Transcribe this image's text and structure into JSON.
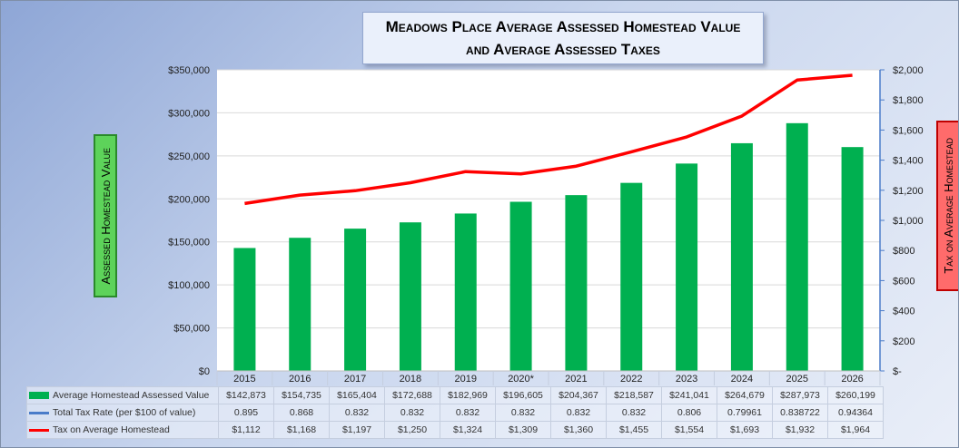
{
  "chart_data": {
    "type": "bar",
    "title_line1": "Meadows Place Average Assessed Homestead Value",
    "title_line2": "and Average Assessed Taxes",
    "ylabel": "Assessed Homestead Value",
    "y2label": "Tax on Average Homestead",
    "categories": [
      "2015",
      "2016",
      "2017",
      "2018",
      "2019",
      "2020*",
      "2021",
      "2022",
      "2023",
      "2024",
      "2025",
      "2026"
    ],
    "ylim": [
      0,
      350000
    ],
    "y2lim": [
      0,
      2000
    ],
    "y_ticks": [
      "$0",
      "$50,000",
      "$100,000",
      "$150,000",
      "$200,000",
      "$250,000",
      "$300,000",
      "$350,000"
    ],
    "y2_ticks": [
      "$-",
      "$200",
      "$400",
      "$600",
      "$800",
      "$1,000",
      "$1,200",
      "$1,400",
      "$1,600",
      "$1,800",
      "$2,000"
    ],
    "series": [
      {
        "name": "Average Homestead Assessed Value",
        "kind": "bar",
        "color": "#00b050",
        "values": [
          142873,
          154735,
          165404,
          172688,
          182969,
          196605,
          204367,
          218587,
          241041,
          264679,
          287973,
          260199
        ],
        "labels": [
          "$142,873",
          "$154,735",
          "$165,404",
          "$172,688",
          "$182,969",
          "$196,605",
          "$204,367",
          "$218,587",
          "$241,041",
          "$264,679",
          "$287,973",
          "$260,199"
        ]
      },
      {
        "name": "Total Tax Rate (per $100 of value)",
        "kind": "line",
        "color": "#4a7cc9",
        "values": [
          0.895,
          0.868,
          0.832,
          0.832,
          0.832,
          0.832,
          0.832,
          0.832,
          0.806,
          0.79961,
          0.838722,
          0.94364
        ],
        "labels": [
          "0.895",
          "0.868",
          "0.832",
          "0.832",
          "0.832",
          "0.832",
          "0.832",
          "0.832",
          "0.806",
          "0.79961",
          "0.838722",
          "0.94364"
        ]
      },
      {
        "name": "Tax on Average Homestead",
        "kind": "line",
        "axis": "right",
        "color": "#ff0000",
        "values": [
          1112,
          1168,
          1197,
          1250,
          1324,
          1309,
          1360,
          1455,
          1554,
          1693,
          1932,
          1964
        ],
        "labels": [
          "$1,112",
          "$1,168",
          "$1,197",
          "$1,250",
          "$1,324",
          "$1,309",
          "$1,360",
          "$1,455",
          "$1,554",
          "$1,693",
          "$1,932",
          "$1,964"
        ]
      }
    ],
    "grid": true,
    "legend": "data-table"
  }
}
